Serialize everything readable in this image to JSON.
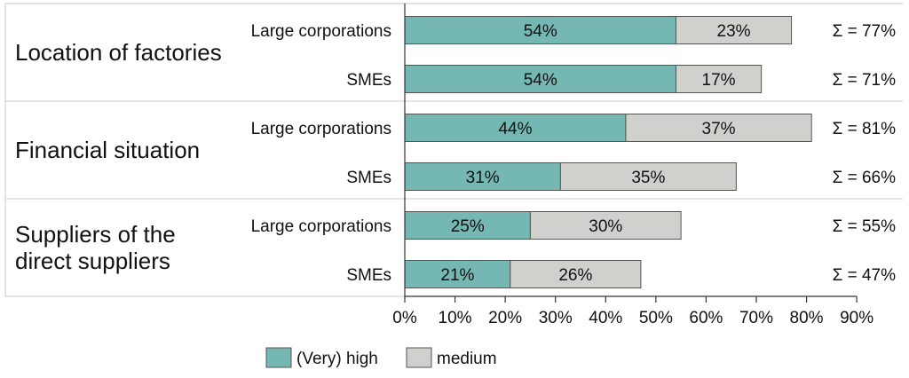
{
  "chart_data": {
    "type": "bar",
    "orientation": "horizontal",
    "stacked": true,
    "xlim": [
      0,
      90
    ],
    "x_ticks": [
      "0%",
      "10%",
      "20%",
      "30%",
      "40%",
      "50%",
      "60%",
      "70%",
      "80%",
      "90%"
    ],
    "series": [
      {
        "name": "(Very) high",
        "color": "#74b7b3"
      },
      {
        "name": "medium",
        "color": "#d0d0cd"
      }
    ],
    "groups": [
      {
        "label_lines": [
          "Location of factories"
        ],
        "rows": [
          {
            "category": "Large corporations",
            "values": [
              54,
              23
            ],
            "labels": [
              "54%",
              "23%"
            ],
            "sum": "Σ = 77%"
          },
          {
            "category": "SMEs",
            "values": [
              54,
              17
            ],
            "labels": [
              "54%",
              "17%"
            ],
            "sum": "Σ = 71%"
          }
        ]
      },
      {
        "label_lines": [
          "Financial situation"
        ],
        "rows": [
          {
            "category": "Large corporations",
            "values": [
              44,
              37
            ],
            "labels": [
              "44%",
              "37%"
            ],
            "sum": "Σ = 81%"
          },
          {
            "category": "SMEs",
            "values": [
              31,
              35
            ],
            "labels": [
              "31%",
              "35%"
            ],
            "sum": "Σ = 66%"
          }
        ]
      },
      {
        "label_lines": [
          "Suppliers of the",
          "direct suppliers"
        ],
        "rows": [
          {
            "category": "Large corporations",
            "values": [
              25,
              30
            ],
            "labels": [
              "25%",
              "30%"
            ],
            "sum": "Σ = 55%"
          },
          {
            "category": "SMEs",
            "values": [
              21,
              26
            ],
            "labels": [
              "21%",
              "26%"
            ],
            "sum": "Σ = 47%"
          }
        ]
      }
    ],
    "grid": false,
    "legend_position": "bottom"
  }
}
